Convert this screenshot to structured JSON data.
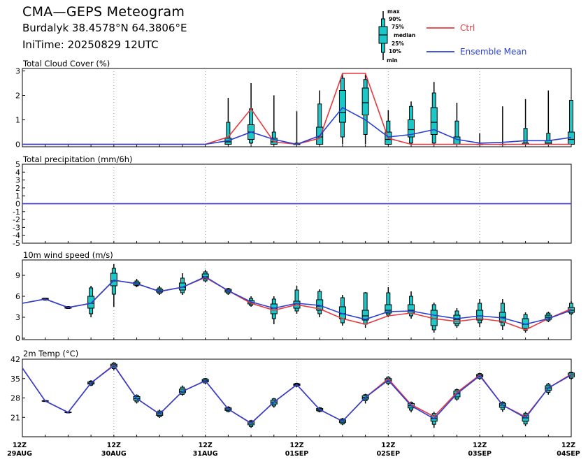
{
  "header": {
    "title": "CMA—GEPS Meteogram",
    "location": "Burdalyk 38.4578°N 64.3806°E",
    "init_time": "IniTime: 20250829 12UTC"
  },
  "legend": {
    "box_labels": [
      "max",
      "90%",
      "75%",
      "median",
      "25%",
      "10%",
      "min"
    ],
    "ctrl_label": "Ctrl",
    "mean_label": "Ensemble Mean",
    "colors": {
      "ctrl": "#e8373d",
      "mean": "#2a3fd4",
      "box": "#1cc7c7"
    }
  },
  "x_axis": {
    "step_hours": 6,
    "tick_labels": [
      {
        "index": 0,
        "hour": "12Z",
        "date": "29AUG"
      },
      {
        "index": 4,
        "hour": "12Z",
        "date": "30AUG"
      },
      {
        "index": 8,
        "hour": "12Z",
        "date": "31AUG"
      },
      {
        "index": 12,
        "hour": "12Z",
        "date": "01SEP"
      },
      {
        "index": 16,
        "hour": "12Z",
        "date": "02SEP"
      },
      {
        "index": 20,
        "hour": "12Z",
        "date": "03SEP"
      },
      {
        "index": 24,
        "hour": "12Z",
        "date": "04SEP"
      }
    ],
    "range": [
      "2025-08-29T12Z",
      "2025-09-04T12Z"
    ]
  },
  "chart_data": [
    {
      "type": "box",
      "title": "Total Cloud Cover (%)",
      "ylim": [
        -0.1,
        3.1
      ],
      "yticks": [
        0,
        1,
        2,
        3
      ],
      "grid": "dotted-vertical",
      "boxes": [
        {
          "i": 9,
          "min": 0,
          "p10": 0,
          "p25": 0,
          "median": 0.1,
          "p75": 0.25,
          "p90": 0.9,
          "max": 1.9
        },
        {
          "i": 10,
          "min": 0,
          "p10": 0.05,
          "p25": 0.2,
          "median": 0.5,
          "p75": 0.8,
          "p90": 1.45,
          "max": 2.5
        },
        {
          "i": 11,
          "min": 0,
          "p10": 0,
          "p25": 0,
          "median": 0.1,
          "p75": 0.25,
          "p90": 0.5,
          "max": 2.0
        },
        {
          "i": 12,
          "min": 0,
          "p10": 0,
          "p25": 0,
          "median": 0,
          "p75": 0,
          "p90": 0.05,
          "max": 1.35
        },
        {
          "i": 13,
          "min": 0,
          "p10": 0,
          "p25": 0,
          "median": 0.3,
          "p75": 0.7,
          "p90": 1.65,
          "max": 2.2
        },
        {
          "i": 14,
          "min": 0,
          "p10": 0.3,
          "p25": 0.9,
          "median": 1.3,
          "p75": 2.2,
          "p90": 2.7,
          "max": 2.9
        },
        {
          "i": 15,
          "min": 0,
          "p10": 0.4,
          "p25": 1.2,
          "median": 1.7,
          "p75": 2.3,
          "p90": 2.65,
          "max": 2.85
        },
        {
          "i": 16,
          "min": 0,
          "p10": 0,
          "p25": 0,
          "median": 0.2,
          "p75": 0.5,
          "p90": 0.95,
          "max": 1.4
        },
        {
          "i": 17,
          "min": 0,
          "p10": 0.05,
          "p25": 0.3,
          "median": 0.6,
          "p75": 1.0,
          "p90": 1.55,
          "max": 1.75
        },
        {
          "i": 18,
          "min": 0,
          "p10": 0.05,
          "p25": 0.4,
          "median": 0.9,
          "p75": 1.5,
          "p90": 2.1,
          "max": 2.55
        },
        {
          "i": 19,
          "min": 0,
          "p10": 0,
          "p25": 0,
          "median": 0,
          "p75": 0.3,
          "p90": 0.95,
          "max": 1.7
        },
        {
          "i": 20,
          "min": 0,
          "p10": 0,
          "p25": 0,
          "median": 0,
          "p75": 0,
          "p90": 0,
          "max": 0.45
        },
        {
          "i": 21,
          "min": 0,
          "p10": 0,
          "p25": 0,
          "median": 0,
          "p75": 0,
          "p90": 0,
          "max": 1.55
        },
        {
          "i": 22,
          "min": 0,
          "p10": 0,
          "p25": 0,
          "median": 0,
          "p75": 0.05,
          "p90": 0.65,
          "max": 1.85
        },
        {
          "i": 23,
          "min": 0,
          "p10": 0,
          "p25": 0,
          "median": 0.05,
          "p75": 0.15,
          "p90": 0.45,
          "max": 2.2
        },
        {
          "i": 24,
          "min": 0,
          "p10": 0,
          "p25": 0,
          "median": 0.2,
          "p75": 0.5,
          "p90": 1.8,
          "max": 1.8
        }
      ],
      "series": [
        {
          "name": "Ctrl",
          "values": [
            0,
            0,
            0,
            0,
            0,
            0,
            0,
            0,
            0,
            0.3,
            1.45,
            0.1,
            0,
            0.25,
            2.9,
            2.9,
            0.25,
            0,
            0,
            0,
            0,
            0,
            0,
            0,
            0
          ]
        },
        {
          "name": "Ensemble Mean",
          "values": [
            0,
            0,
            0,
            0,
            0,
            0,
            0,
            0,
            0,
            0.15,
            0.5,
            0.2,
            0,
            0.35,
            1.5,
            1.0,
            0.3,
            0.4,
            0.6,
            0.2,
            0.05,
            0.08,
            0.15,
            0.15,
            0.28
          ]
        }
      ]
    },
    {
      "type": "box",
      "title": "Total precipitation (mm/6h)",
      "ylim": [
        -5,
        5
      ],
      "yticks": [
        -5,
        -4,
        -3,
        -2,
        -1,
        0,
        1,
        2,
        3,
        4,
        5
      ],
      "grid": "dotted-vertical",
      "boxes": [],
      "series": [
        {
          "name": "Ctrl",
          "values": [
            0,
            0,
            0,
            0,
            0,
            0,
            0,
            0,
            0,
            0,
            0,
            0,
            0,
            0,
            0,
            0,
            0,
            0,
            0,
            0,
            0,
            0,
            0,
            0,
            0
          ]
        },
        {
          "name": "Ensemble Mean",
          "values": [
            0,
            0,
            0,
            0,
            0,
            0,
            0,
            0,
            0,
            0,
            0,
            0,
            0,
            0,
            0,
            0,
            0,
            0,
            0,
            0,
            0,
            0,
            0,
            0,
            0
          ]
        }
      ]
    },
    {
      "type": "box",
      "title": "10m wind speed (m/s)",
      "ylim": [
        -0.2,
        11.2
      ],
      "yticks": [
        0,
        3,
        6,
        9
      ],
      "grid": "dotted-vertical",
      "boxes": [
        {
          "i": 1,
          "min": 5.4,
          "p10": 5.45,
          "p25": 5.5,
          "median": 5.6,
          "p75": 5.7,
          "p90": 5.75,
          "max": 5.8
        },
        {
          "i": 2,
          "min": 4.2,
          "p10": 4.25,
          "p25": 4.3,
          "median": 4.4,
          "p75": 4.5,
          "p90": 4.55,
          "max": 4.6
        },
        {
          "i": 3,
          "min": 3.0,
          "p10": 3.5,
          "p25": 4.3,
          "median": 5.0,
          "p75": 6.0,
          "p90": 7.2,
          "max": 7.5
        },
        {
          "i": 4,
          "min": 4.5,
          "p10": 6.3,
          "p25": 7.5,
          "median": 8.2,
          "p75": 9.3,
          "p90": 10.0,
          "max": 10.6
        },
        {
          "i": 5,
          "min": 7.3,
          "p10": 7.5,
          "p25": 7.6,
          "median": 7.8,
          "p75": 8.0,
          "p90": 8.2,
          "max": 8.5
        },
        {
          "i": 6,
          "min": 6.2,
          "p10": 6.4,
          "p25": 6.6,
          "median": 6.8,
          "p75": 7.0,
          "p90": 7.2,
          "max": 7.5
        },
        {
          "i": 7,
          "min": 6.2,
          "p10": 6.5,
          "p25": 6.9,
          "median": 7.3,
          "p75": 7.9,
          "p90": 8.6,
          "max": 9.3
        },
        {
          "i": 8,
          "min": 8.0,
          "p10": 8.2,
          "p25": 8.5,
          "median": 8.8,
          "p75": 9.2,
          "p90": 9.5,
          "max": 9.8
        },
        {
          "i": 9,
          "min": 6.2,
          "p10": 6.4,
          "p25": 6.6,
          "median": 6.8,
          "p75": 7.0,
          "p90": 7.1,
          "max": 7.2
        },
        {
          "i": 10,
          "min": 4.5,
          "p10": 4.7,
          "p25": 4.9,
          "median": 5.1,
          "p75": 5.4,
          "p90": 5.7,
          "max": 6.0
        },
        {
          "i": 11,
          "min": 2.0,
          "p10": 2.8,
          "p25": 3.5,
          "median": 4.3,
          "p75": 4.9,
          "p90": 5.6,
          "max": 6.0
        },
        {
          "i": 12,
          "min": 3.5,
          "p10": 3.9,
          "p25": 4.3,
          "median": 4.8,
          "p75": 5.3,
          "p90": 6.9,
          "max": 7.5
        },
        {
          "i": 13,
          "min": 3.0,
          "p10": 3.5,
          "p25": 4.0,
          "median": 4.6,
          "p75": 5.5,
          "p90": 6.7,
          "max": 7.0
        },
        {
          "i": 14,
          "min": 1.8,
          "p10": 2.2,
          "p25": 2.8,
          "median": 3.5,
          "p75": 4.5,
          "p90": 5.8,
          "max": 6.2
        },
        {
          "i": 15,
          "min": 1.5,
          "p10": 2.0,
          "p25": 2.6,
          "median": 3.2,
          "p75": 4.0,
          "p90": 6.5,
          "max": 6.6
        },
        {
          "i": 16,
          "min": 3.0,
          "p10": 3.3,
          "p25": 3.6,
          "median": 4.0,
          "p75": 4.8,
          "p90": 6.5,
          "max": 7.3
        },
        {
          "i": 17,
          "min": 2.8,
          "p10": 3.2,
          "p25": 3.6,
          "median": 4.0,
          "p75": 4.8,
          "p90": 6.0,
          "max": 6.7
        },
        {
          "i": 18,
          "min": 0.8,
          "p10": 1.2,
          "p25": 1.8,
          "median": 2.8,
          "p75": 4.0,
          "p90": 4.8,
          "max": 5.1
        },
        {
          "i": 19,
          "min": 1.5,
          "p10": 1.8,
          "p25": 2.1,
          "median": 2.7,
          "p75": 3.3,
          "p90": 3.9,
          "max": 4.3
        },
        {
          "i": 20,
          "min": 1.6,
          "p10": 2.2,
          "p25": 2.6,
          "median": 3.2,
          "p75": 4.0,
          "p90": 5.0,
          "max": 5.6
        },
        {
          "i": 21,
          "min": 1.2,
          "p10": 1.8,
          "p25": 2.3,
          "median": 3.0,
          "p75": 3.7,
          "p90": 5.0,
          "max": 5.6
        },
        {
          "i": 22,
          "min": 0.8,
          "p10": 1.1,
          "p25": 1.4,
          "median": 2.0,
          "p75": 2.8,
          "p90": 3.4,
          "max": 3.7
        },
        {
          "i": 23,
          "min": 2.3,
          "p10": 2.5,
          "p25": 2.7,
          "median": 3.0,
          "p75": 3.3,
          "p90": 3.6,
          "max": 3.8
        },
        {
          "i": 24,
          "min": 3.3,
          "p10": 3.5,
          "p25": 3.7,
          "median": 4.0,
          "p75": 4.4,
          "p90": 5.0,
          "max": 5.3
        }
      ],
      "series": [
        {
          "name": "Ctrl",
          "values": [
            5.0,
            5.6,
            4.4,
            5.0,
            8.3,
            7.8,
            6.7,
            7.3,
            8.7,
            6.8,
            5.0,
            4.0,
            4.8,
            4.2,
            2.8,
            2.0,
            3.2,
            3.6,
            2.8,
            2.4,
            2.8,
            2.4,
            1.2,
            2.8,
            4.2
          ]
        },
        {
          "name": "Ensemble Mean",
          "values": [
            5.0,
            5.6,
            4.4,
            5.0,
            8.3,
            7.8,
            6.7,
            7.3,
            8.8,
            6.8,
            5.2,
            4.3,
            5.0,
            4.7,
            3.5,
            2.7,
            3.8,
            3.9,
            3.3,
            2.8,
            3.2,
            2.9,
            2.0,
            2.8,
            4.0
          ]
        }
      ]
    },
    {
      "type": "box",
      "title": "2m Temp (°C)",
      "ylim": [
        14,
        42
      ],
      "yticks": [
        21,
        28,
        35,
        42
      ],
      "grid": "dotted-vertical",
      "boxes": [
        {
          "i": 1,
          "min": 26.6,
          "p10": 26.7,
          "p25": 26.8,
          "median": 26.9,
          "p75": 27.0,
          "p90": 27.1,
          "max": 27.2
        },
        {
          "i": 2,
          "min": 22.5,
          "p10": 22.6,
          "p25": 22.7,
          "median": 22.8,
          "p75": 22.9,
          "p90": 23.0,
          "max": 23.1
        },
        {
          "i": 3,
          "min": 32.3,
          "p10": 32.6,
          "p25": 33.0,
          "median": 33.4,
          "p75": 33.8,
          "p90": 34.1,
          "max": 34.4
        },
        {
          "i": 4,
          "min": 38.0,
          "p10": 38.6,
          "p25": 39.2,
          "median": 39.7,
          "p75": 40.2,
          "p90": 40.6,
          "max": 40.9
        },
        {
          "i": 5,
          "min": 26.0,
          "p10": 26.6,
          "p25": 27.2,
          "median": 27.8,
          "p75": 28.5,
          "p90": 29.0,
          "max": 29.3
        },
        {
          "i": 6,
          "min": 20.8,
          "p10": 21.2,
          "p25": 21.7,
          "median": 22.2,
          "p75": 22.8,
          "p90": 23.3,
          "max": 23.8
        },
        {
          "i": 7,
          "min": 28.8,
          "p10": 29.3,
          "p25": 29.9,
          "median": 30.4,
          "p75": 31.2,
          "p90": 31.9,
          "max": 32.5
        },
        {
          "i": 8,
          "min": 33.0,
          "p10": 33.4,
          "p25": 33.8,
          "median": 34.2,
          "p75": 34.7,
          "p90": 35.0,
          "max": 35.2
        },
        {
          "i": 9,
          "min": 22.8,
          "p10": 23.1,
          "p25": 23.5,
          "median": 24.0,
          "p75": 24.4,
          "p90": 24.7,
          "max": 25.0
        },
        {
          "i": 10,
          "min": 17.2,
          "p10": 17.7,
          "p25": 18.3,
          "median": 18.9,
          "p75": 19.4,
          "p90": 19.8,
          "max": 20.1
        },
        {
          "i": 11,
          "min": 24.5,
          "p10": 25.1,
          "p25": 25.8,
          "median": 26.5,
          "p75": 27.2,
          "p90": 27.7,
          "max": 28.0
        },
        {
          "i": 12,
          "min": 31.9,
          "p10": 32.2,
          "p25": 32.5,
          "median": 32.8,
          "p75": 33.1,
          "p90": 33.3,
          "max": 33.5
        },
        {
          "i": 13,
          "min": 22.8,
          "p10": 23.1,
          "p25": 23.4,
          "median": 23.8,
          "p75": 24.2,
          "p90": 24.5,
          "max": 24.7
        },
        {
          "i": 14,
          "min": 18.2,
          "p10": 18.6,
          "p25": 19.1,
          "median": 19.6,
          "p75": 20.1,
          "p90": 20.5,
          "max": 20.8
        },
        {
          "i": 15,
          "min": 26.0,
          "p10": 27.0,
          "p25": 27.6,
          "median": 28.2,
          "p75": 28.8,
          "p90": 29.2,
          "max": 29.5
        },
        {
          "i": 16,
          "min": 32.6,
          "p10": 33.2,
          "p25": 33.8,
          "median": 34.4,
          "p75": 35.0,
          "p90": 35.5,
          "max": 35.8
        },
        {
          "i": 17,
          "min": 22.8,
          "p10": 23.6,
          "p25": 24.4,
          "median": 25.2,
          "p75": 26.0,
          "p90": 26.4,
          "max": 26.7
        },
        {
          "i": 18,
          "min": 17.2,
          "p10": 18.5,
          "p25": 19.6,
          "median": 20.5,
          "p75": 21.6,
          "p90": 22.4,
          "max": 23.0
        },
        {
          "i": 19,
          "min": 27.0,
          "p10": 27.6,
          "p25": 28.4,
          "median": 29.5,
          "p75": 30.5,
          "p90": 31.0,
          "max": 31.4
        },
        {
          "i": 20,
          "min": 34.5,
          "p10": 35.0,
          "p25": 35.6,
          "median": 36.0,
          "p75": 36.5,
          "p90": 36.8,
          "max": 37.1
        },
        {
          "i": 21,
          "min": 23.0,
          "p10": 23.8,
          "p25": 24.6,
          "median": 25.4,
          "p75": 26.1,
          "p90": 26.5,
          "max": 26.8
        },
        {
          "i": 22,
          "min": 17.8,
          "p10": 18.6,
          "p25": 19.6,
          "median": 20.8,
          "p75": 21.8,
          "p90": 22.5,
          "max": 23.0
        },
        {
          "i": 23,
          "min": 29.2,
          "p10": 30.0,
          "p25": 30.8,
          "median": 31.6,
          "p75": 32.4,
          "p90": 33.0,
          "max": 33.4
        },
        {
          "i": 24,
          "min": 34.5,
          "p10": 35.1,
          "p25": 35.6,
          "median": 36.3,
          "p75": 37.0,
          "p90": 37.3,
          "max": 37.5
        }
      ],
      "series": [
        {
          "name": "Ctrl",
          "values": [
            38.8,
            26.9,
            22.8,
            33.4,
            39.9,
            27.8,
            22.2,
            30.4,
            34.2,
            24.0,
            18.8,
            26.5,
            32.8,
            23.8,
            19.6,
            28.2,
            34.9,
            25.6,
            21.3,
            30.0,
            36.3,
            25.4,
            21.2,
            31.6,
            36.6
          ]
        },
        {
          "name": "Ensemble Mean",
          "values": [
            38.8,
            26.9,
            22.8,
            33.4,
            39.7,
            27.8,
            22.2,
            30.4,
            34.2,
            24.0,
            18.9,
            26.5,
            32.8,
            23.8,
            19.6,
            28.2,
            34.4,
            25.2,
            20.5,
            29.5,
            36.0,
            25.4,
            20.8,
            31.6,
            36.3
          ]
        }
      ]
    }
  ]
}
